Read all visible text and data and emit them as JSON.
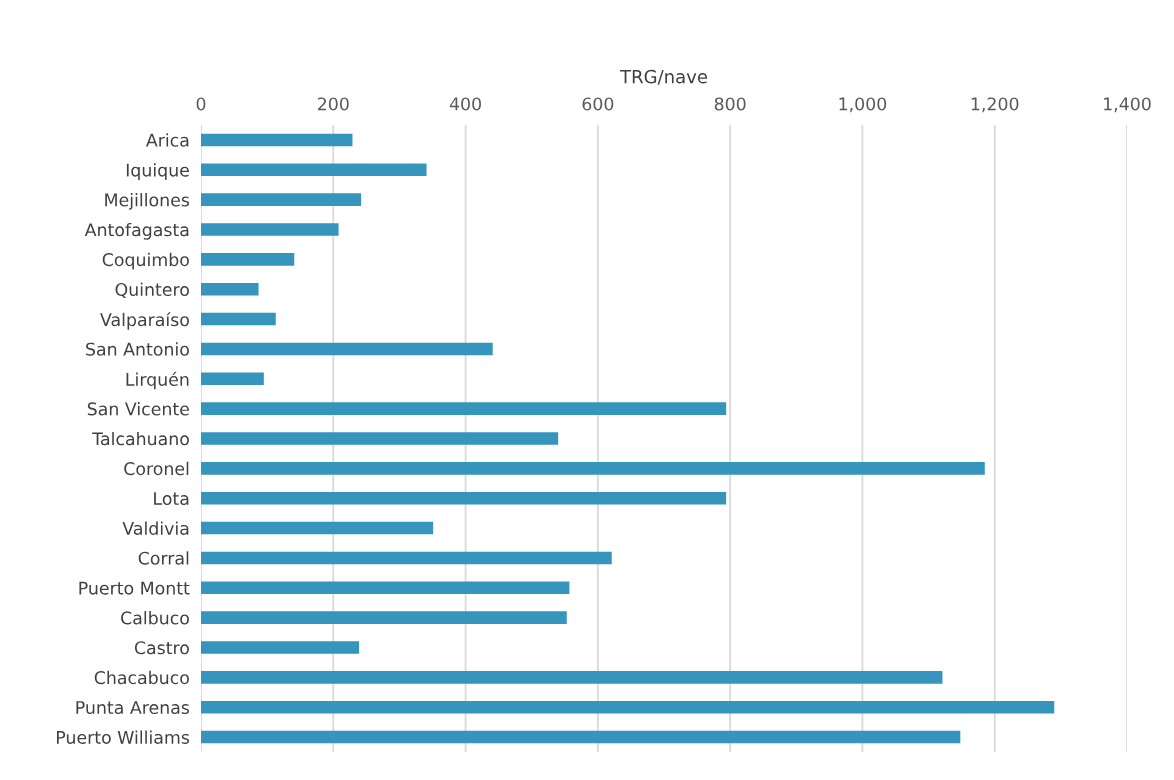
{
  "chart_data": {
    "type": "bar",
    "orientation": "horizontal",
    "xlabel": "TRG/nave",
    "categories": [
      "Arica",
      "Iquique",
      "Mejillones",
      "Antofagasta",
      "Coquimbo",
      "Quintero",
      "Valparaíso",
      "San Antonio",
      "Lirquén",
      "San Vicente",
      "Talcahuano",
      "Coronel",
      "Lota",
      "Valdivia",
      "Corral",
      "Puerto Montt",
      "Calbuco",
      "Castro",
      "Chacabuco",
      "Punta Arenas",
      "Puerto Williams"
    ],
    "values": [
      229,
      341,
      242,
      208,
      141,
      87,
      113,
      441,
      95,
      794,
      540,
      1185,
      794,
      351,
      621,
      557,
      553,
      239,
      1121,
      1290,
      1148
    ],
    "color": "#3595bc",
    "xlim": [
      0,
      1400
    ],
    "xticks": [
      0,
      200,
      400,
      {
        "value": 600,
        "label": "600"
      },
      {
        "value": 800,
        "label": "800"
      },
      {
        "value": 1000,
        "label": "1,000"
      },
      {
        "value": 1200,
        "label": "1,200"
      },
      {
        "value": 1400,
        "label": "1,400"
      }
    ],
    "grid": "x"
  }
}
